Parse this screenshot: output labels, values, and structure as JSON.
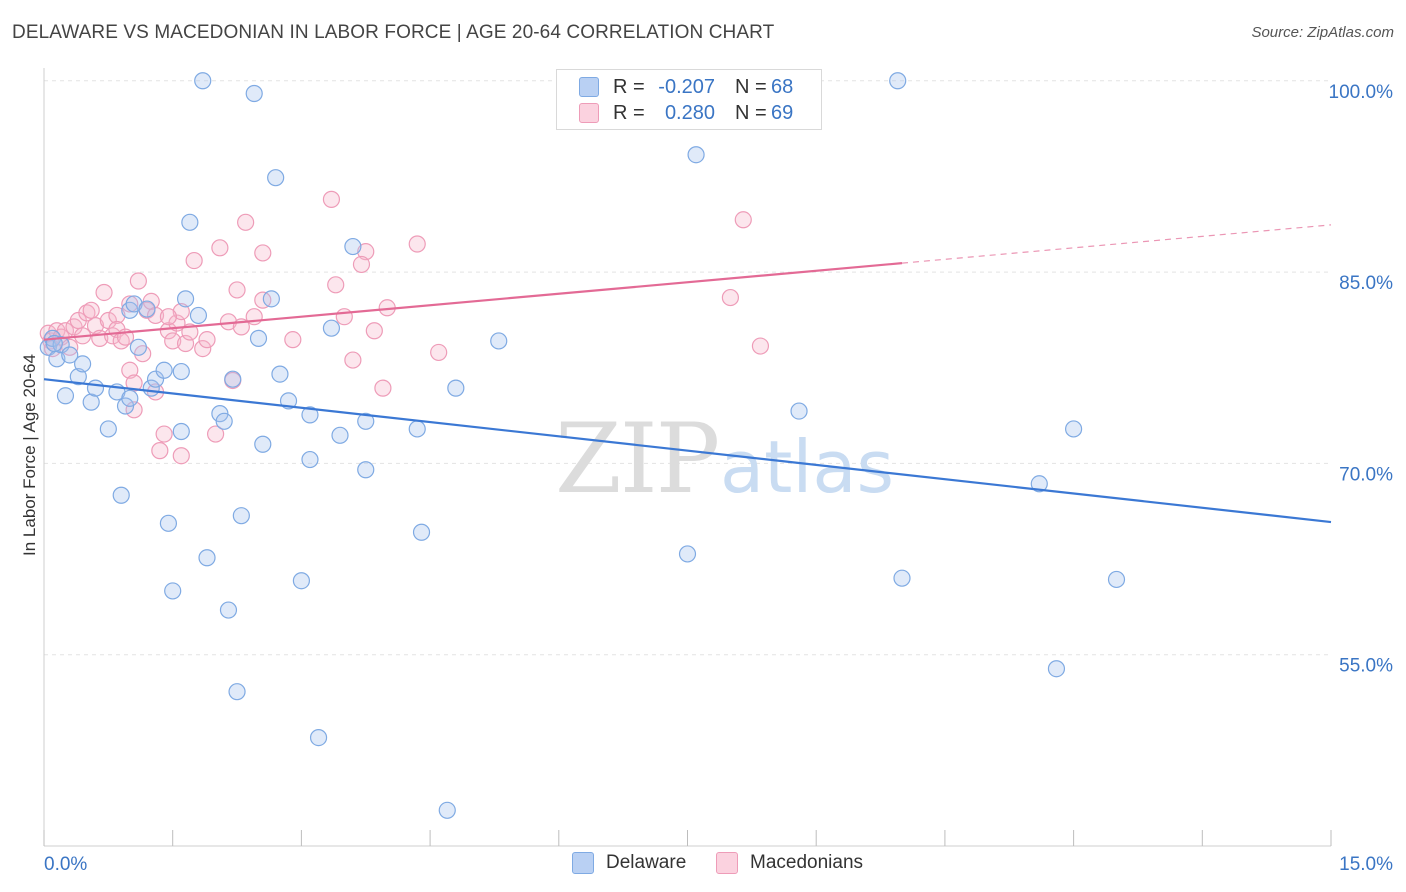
{
  "title": "DELAWARE VS MACEDONIAN IN LABOR FORCE | AGE 20-64 CORRELATION CHART",
  "source": "Source: ZipAtlas.com",
  "watermark": {
    "zip": "ZIP",
    "atlas": "atlas"
  },
  "colors": {
    "blue": "#3b78d4",
    "blue_fill": "rgba(165,196,238,0.35)",
    "blue_stroke": "#7faae3",
    "pink": "#e36a95",
    "pink_fill": "rgba(246,182,203,0.35)",
    "pink_stroke": "#ee9cb8",
    "axis_label": "#3a75c4"
  },
  "stats": [
    {
      "series": "Delaware",
      "r_label": "R =",
      "r_value": "-0.207",
      "n_label": "N =",
      "n_value": "68"
    },
    {
      "series": "Macedonians",
      "r_label": "R =",
      "r_value": "0.280",
      "n_label": "N =",
      "n_value": "69"
    }
  ],
  "legend": {
    "items": [
      {
        "label": "Delaware"
      },
      {
        "label": "Macedonians"
      }
    ]
  },
  "chart_data": {
    "type": "scatter",
    "title": "DELAWARE VS MACEDONIAN IN LABOR FORCE | AGE 20-64 CORRELATION CHART",
    "xlabel": "",
    "ylabel": "In Labor Force | Age 20-64",
    "xlim": [
      0,
      15
    ],
    "ylim": [
      40,
      101
    ],
    "x_tick_labels": {
      "min": "0.0%",
      "max": "15.0%"
    },
    "y_ticks": [
      {
        "value": 100,
        "label": "100.0%"
      },
      {
        "value": 85,
        "label": "85.0%"
      },
      {
        "value": 70,
        "label": "70.0%"
      },
      {
        "value": 55,
        "label": "55.0%"
      }
    ],
    "series": [
      {
        "name": "Delaware",
        "color": "blue",
        "trend": {
          "x": [
            0,
            15
          ],
          "y": [
            76.6,
            65.4
          ],
          "solid_to": 15
        },
        "points": [
          [
            0.05,
            79.1
          ],
          [
            0.1,
            79.8
          ],
          [
            0.15,
            78.2
          ],
          [
            0.2,
            79.3
          ],
          [
            0.25,
            75.3
          ],
          [
            0.3,
            78.5
          ],
          [
            0.4,
            76.8
          ],
          [
            0.45,
            77.8
          ],
          [
            0.55,
            74.8
          ],
          [
            0.6,
            75.9
          ],
          [
            0.75,
            72.7
          ],
          [
            0.85,
            75.6
          ],
          [
            0.9,
            67.5
          ],
          [
            0.95,
            74.5
          ],
          [
            1.0,
            75.1
          ],
          [
            1.0,
            82.0
          ],
          [
            1.05,
            82.5
          ],
          [
            1.1,
            79.1
          ],
          [
            1.2,
            82.1
          ],
          [
            1.25,
            75.9
          ],
          [
            1.3,
            76.6
          ],
          [
            1.4,
            77.3
          ],
          [
            1.45,
            65.3
          ],
          [
            1.5,
            60.0
          ],
          [
            1.6,
            72.5
          ],
          [
            1.6,
            77.2
          ],
          [
            1.65,
            82.9
          ],
          [
            1.7,
            88.9
          ],
          [
            1.8,
            81.6
          ],
          [
            1.85,
            100.0
          ],
          [
            1.9,
            62.6
          ],
          [
            2.05,
            73.9
          ],
          [
            2.1,
            73.3
          ],
          [
            2.15,
            58.5
          ],
          [
            2.2,
            76.6
          ],
          [
            2.25,
            52.1
          ],
          [
            2.3,
            65.9
          ],
          [
            2.45,
            99.0
          ],
          [
            2.5,
            79.8
          ],
          [
            2.55,
            71.5
          ],
          [
            2.65,
            82.9
          ],
          [
            2.7,
            92.4
          ],
          [
            2.75,
            77.0
          ],
          [
            2.85,
            74.9
          ],
          [
            3.0,
            60.8
          ],
          [
            3.1,
            73.8
          ],
          [
            3.1,
            70.3
          ],
          [
            3.2,
            48.5
          ],
          [
            3.35,
            80.6
          ],
          [
            3.45,
            72.2
          ],
          [
            3.6,
            87.0
          ],
          [
            3.75,
            73.3
          ],
          [
            3.75,
            69.5
          ],
          [
            4.35,
            72.7
          ],
          [
            4.4,
            64.6
          ],
          [
            4.7,
            42.8
          ],
          [
            4.8,
            75.9
          ],
          [
            5.3,
            79.6
          ],
          [
            7.5,
            62.9
          ],
          [
            7.6,
            94.2
          ],
          [
            8.8,
            74.1
          ],
          [
            9.95,
            100.0
          ],
          [
            10.0,
            61.0
          ],
          [
            11.6,
            68.4
          ],
          [
            11.8,
            53.9
          ],
          [
            12.0,
            72.7
          ],
          [
            12.5,
            60.9
          ],
          [
            0.12,
            79.4
          ]
        ]
      },
      {
        "name": "Macedonians",
        "color": "pink",
        "trend": {
          "x": [
            0,
            15
          ],
          "y": [
            79.7,
            88.7
          ],
          "solid_to": 10.0
        },
        "points": [
          [
            0.05,
            80.2
          ],
          [
            0.08,
            79.6
          ],
          [
            0.1,
            79.0
          ],
          [
            0.15,
            80.4
          ],
          [
            0.2,
            79.9
          ],
          [
            0.25,
            80.4
          ],
          [
            0.3,
            79.1
          ],
          [
            0.35,
            80.7
          ],
          [
            0.4,
            81.2
          ],
          [
            0.45,
            80.0
          ],
          [
            0.5,
            81.8
          ],
          [
            0.55,
            82.0
          ],
          [
            0.6,
            80.8
          ],
          [
            0.65,
            79.8
          ],
          [
            0.7,
            83.4
          ],
          [
            0.75,
            81.2
          ],
          [
            0.8,
            80.0
          ],
          [
            0.85,
            81.6
          ],
          [
            0.85,
            80.5
          ],
          [
            0.9,
            79.6
          ],
          [
            0.95,
            79.9
          ],
          [
            1.0,
            82.5
          ],
          [
            1.0,
            77.3
          ],
          [
            1.05,
            76.3
          ],
          [
            1.05,
            74.2
          ],
          [
            1.1,
            84.3
          ],
          [
            1.15,
            78.6
          ],
          [
            1.2,
            82.0
          ],
          [
            1.25,
            82.7
          ],
          [
            1.3,
            81.6
          ],
          [
            1.3,
            75.6
          ],
          [
            1.35,
            71.0
          ],
          [
            1.4,
            72.3
          ],
          [
            1.45,
            80.4
          ],
          [
            1.5,
            79.6
          ],
          [
            1.55,
            81.0
          ],
          [
            1.6,
            81.9
          ],
          [
            1.6,
            70.6
          ],
          [
            1.65,
            79.4
          ],
          [
            1.7,
            80.3
          ],
          [
            1.75,
            85.9
          ],
          [
            1.85,
            79.0
          ],
          [
            1.9,
            79.7
          ],
          [
            2.0,
            72.3
          ],
          [
            2.05,
            86.9
          ],
          [
            2.15,
            81.1
          ],
          [
            2.2,
            76.5
          ],
          [
            2.25,
            83.6
          ],
          [
            2.3,
            80.7
          ],
          [
            2.35,
            88.9
          ],
          [
            2.45,
            81.5
          ],
          [
            2.55,
            86.5
          ],
          [
            2.9,
            79.7
          ],
          [
            3.35,
            90.7
          ],
          [
            3.4,
            84.0
          ],
          [
            3.5,
            81.5
          ],
          [
            3.6,
            78.1
          ],
          [
            3.75,
            86.6
          ],
          [
            3.85,
            80.4
          ],
          [
            3.95,
            75.9
          ],
          [
            4.0,
            82.2
          ],
          [
            4.35,
            87.2
          ],
          [
            4.6,
            78.7
          ],
          [
            8.0,
            83.0
          ],
          [
            8.15,
            89.1
          ],
          [
            8.35,
            79.2
          ],
          [
            3.7,
            85.6
          ],
          [
            2.55,
            82.8
          ],
          [
            1.45,
            81.5
          ]
        ]
      }
    ]
  }
}
